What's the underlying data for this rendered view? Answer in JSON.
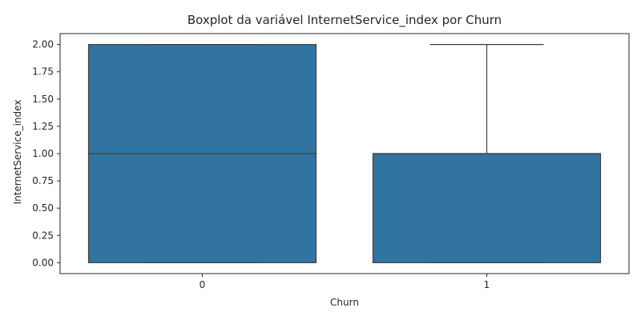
{
  "chart_data": {
    "type": "box",
    "title": "Boxplot da variável InternetService_index por Churn",
    "xlabel": "Churn",
    "ylabel": "InternetService_index",
    "categories": [
      "0",
      "1"
    ],
    "ylim": [
      -0.1,
      2.1
    ],
    "yticks": [
      "0.00",
      "0.25",
      "0.50",
      "0.75",
      "1.00",
      "1.25",
      "1.50",
      "1.75",
      "2.00"
    ],
    "ytick_values": [
      0,
      0.25,
      0.5,
      0.75,
      1.0,
      1.25,
      1.5,
      1.75,
      2.0
    ],
    "boxes": [
      {
        "category": "0",
        "whisker_low": 0,
        "q1": 0,
        "median": 1,
        "q3": 2,
        "whisker_high": 2
      },
      {
        "category": "1",
        "whisker_low": 0,
        "q1": 0,
        "median": 1,
        "q3": 1,
        "whisker_high": 2
      }
    ],
    "grid": false,
    "colors": {
      "box_fill": "#3274a1",
      "box_edge": "#3f3f3f",
      "axis": "#262626"
    }
  }
}
